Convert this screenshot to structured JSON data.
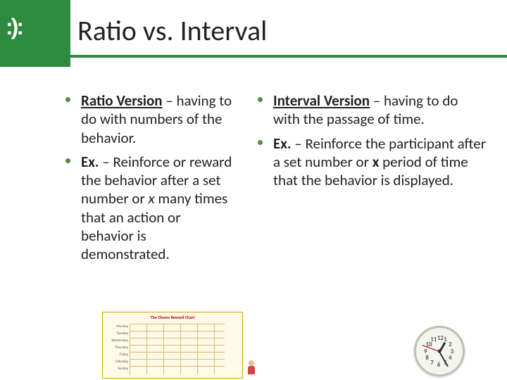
{
  "header": {
    "logo": ":):",
    "title": "Ratio vs. Interval"
  },
  "left_col": {
    "item1_lead": "Ratio Version",
    "item1_rest": " – having to do with numbers of the behavior.",
    "item2_lead": "Ex.",
    "item2_rest": " – Reinforce or reward the behavior after a set number or ",
    "item2_x": "x",
    "item2_tail": " many times that an action or behavior is demonstrated."
  },
  "right_col": {
    "item1_lead": "Interval Version",
    "item1_rest": " – having to do with the passage of time.",
    "item2_lead": "Ex.",
    "item2_rest": " – Reinforce the participant after a set number or ",
    "item2_x": "x",
    "item2_tail": " period of time that the behavior is displayed."
  },
  "chart": {
    "title": "The Chores Reward Chart",
    "days": [
      "Monday",
      "Tuesday",
      "Wednesday",
      "Thursday",
      "Friday",
      "Saturday",
      "Sunday"
    ],
    "border_color": "#d4a800",
    "bg_color": "#fff9e8"
  },
  "clock": {
    "numbers": [
      "12",
      "1",
      "2",
      "3",
      "4",
      "5",
      "6",
      "7",
      "8",
      "9",
      "10",
      "11"
    ],
    "hour_angle": -60,
    "minute_angle": 60,
    "second_angle": 200,
    "face_bg": "#f5f5f0",
    "rim_color": "#c0c0b0"
  }
}
